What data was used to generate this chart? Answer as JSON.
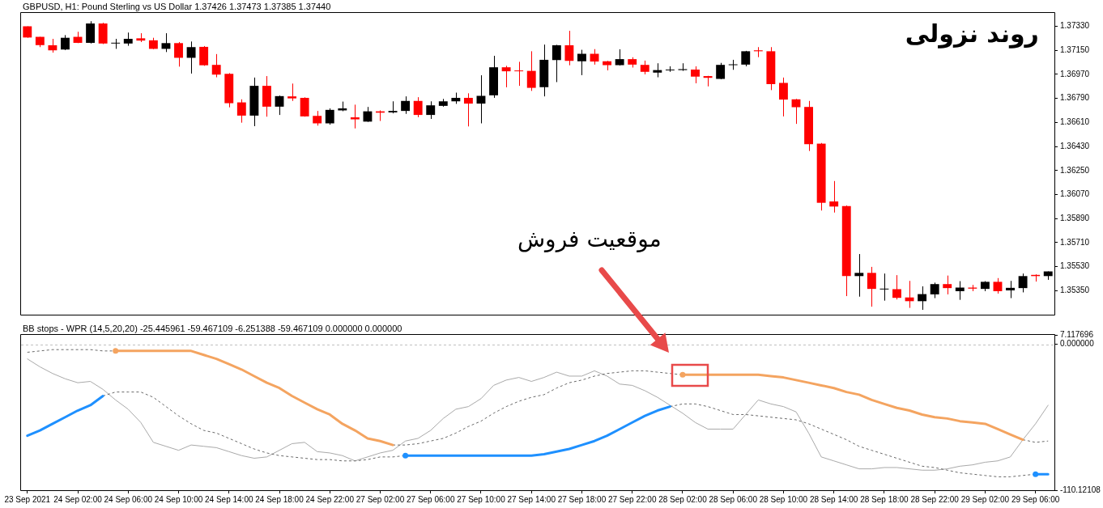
{
  "chart_data": [
    {
      "type": "candlestick",
      "title": "GBPUSD, H1: Pound Sterling vs US Dollar 1.37426 1.37473 1.37385 1.37440",
      "categories": [
        null,
        null,
        null,
        null,
        null,
        null,
        null,
        null,
        null,
        null,
        null,
        null,
        null,
        null,
        null,
        null,
        null,
        null,
        null,
        null,
        null,
        null,
        null,
        null,
        null,
        null,
        null,
        null,
        null,
        null,
        null,
        null,
        null,
        null,
        null,
        null,
        null,
        null,
        null,
        null,
        null,
        null,
        null,
        null,
        null,
        null,
        null,
        null,
        null,
        null,
        null,
        null,
        null,
        null,
        null,
        null,
        null,
        null,
        null,
        null,
        null,
        null,
        null,
        null,
        null,
        null,
        null,
        null,
        null,
        null,
        null,
        null,
        null,
        null,
        null,
        null,
        null,
        null,
        null,
        null,
        null,
        null
      ],
      "ohlc": [
        [
          1.3733,
          1.3733,
          1.37244,
          1.37246
        ],
        [
          1.37251,
          1.37251,
          1.37174,
          1.37189
        ],
        [
          1.37188,
          1.37236,
          1.37133,
          1.3715
        ],
        [
          1.37156,
          1.37264,
          1.37152,
          1.37244
        ],
        [
          1.37251,
          1.37289,
          1.37204,
          1.37206
        ],
        [
          1.37206,
          1.37368,
          1.37201,
          1.37351
        ],
        [
          1.37351,
          1.37356,
          1.37197,
          1.37201
        ],
        [
          1.37201,
          1.37236,
          1.37161,
          1.37203
        ],
        [
          1.37201,
          1.37283,
          1.37184,
          1.37236
        ],
        [
          1.3724,
          1.37278,
          1.37212,
          1.37223
        ],
        [
          1.37225,
          1.37244,
          1.37159,
          1.37161
        ],
        [
          1.37161,
          1.37278,
          1.37137,
          1.37204
        ],
        [
          1.37204,
          1.37212,
          1.37028,
          1.37094
        ],
        [
          1.37094,
          1.37216,
          1.36976,
          1.37174
        ],
        [
          1.37176,
          1.37182,
          1.37034,
          1.37038
        ],
        [
          1.37041,
          1.37122,
          1.36948,
          1.36968
        ],
        [
          1.36974,
          1.36979,
          1.36723,
          1.36754
        ],
        [
          1.3676,
          1.36783,
          1.36608,
          1.36661
        ],
        [
          1.36661,
          1.36946,
          1.36582,
          1.36884
        ],
        [
          1.36884,
          1.36957,
          1.36653,
          1.36728
        ],
        [
          1.36728,
          1.36811,
          1.36666,
          1.36807
        ],
        [
          1.36805,
          1.36901,
          1.36771,
          1.3679
        ],
        [
          1.36794,
          1.36798,
          1.36653,
          1.36655
        ],
        [
          1.36659,
          1.36696,
          1.36586,
          1.36603
        ],
        [
          1.36603,
          1.36715,
          1.36593,
          1.36704
        ],
        [
          1.367,
          1.36766,
          1.36694,
          1.36715
        ],
        [
          1.36648,
          1.36743,
          1.36565,
          1.36633
        ],
        [
          1.36616,
          1.36726,
          1.36614,
          1.36693
        ],
        [
          1.36693,
          1.367,
          1.36621,
          1.36683
        ],
        [
          1.36685,
          1.36768,
          1.36678,
          1.36696
        ],
        [
          1.36696,
          1.36805,
          1.36674,
          1.36771
        ],
        [
          1.36771,
          1.36799,
          1.36649,
          1.36666
        ],
        [
          1.36666,
          1.36768,
          1.36636,
          1.36738
        ],
        [
          1.36734,
          1.36786,
          1.36728,
          1.36768
        ],
        [
          1.36768,
          1.36833,
          1.36749,
          1.36794
        ],
        [
          1.36794,
          1.36828,
          1.3658,
          1.36751
        ],
        [
          1.36751,
          1.36963,
          1.36603,
          1.36809
        ],
        [
          1.36813,
          1.37109,
          1.36794,
          1.37023
        ],
        [
          1.37023,
          1.37034,
          1.36873,
          1.36993
        ],
        [
          1.36996,
          1.37064,
          1.36884,
          1.36993
        ],
        [
          1.36996,
          1.37143,
          1.36846,
          1.36869
        ],
        [
          1.36874,
          1.37193,
          1.36805,
          1.37079
        ],
        [
          1.37077,
          1.37191,
          1.36912,
          1.37188
        ],
        [
          1.37188,
          1.37296,
          1.37038,
          1.37071
        ],
        [
          1.37068,
          1.37154,
          1.36964,
          1.37124
        ],
        [
          1.37124,
          1.37159,
          1.37043,
          1.37066
        ],
        [
          1.37068,
          1.37071,
          1.37,
          1.37039
        ],
        [
          1.37039,
          1.37158,
          1.37036,
          1.37084
        ],
        [
          1.37084,
          1.37098,
          1.37021,
          1.37043
        ],
        [
          1.37041,
          1.37073,
          1.3697,
          1.36989
        ],
        [
          1.36983,
          1.37053,
          1.36948,
          1.37002
        ],
        [
          1.37,
          1.3703,
          1.36989,
          1.37002
        ],
        [
          1.37002,
          1.37053,
          1.36996,
          1.37009
        ],
        [
          1.37006,
          1.3703,
          1.36903,
          1.36953
        ],
        [
          1.36957,
          1.36959,
          1.3688,
          1.36944
        ],
        [
          1.36936,
          1.37056,
          1.36933,
          1.37041
        ],
        [
          1.37039,
          1.37079,
          1.37004,
          1.37043
        ],
        [
          1.37043,
          1.37146,
          1.3703,
          1.37143
        ],
        [
          1.3715,
          1.37174,
          1.37099,
          1.37143
        ],
        [
          1.37143,
          1.37174,
          1.36852,
          1.36897
        ],
        [
          1.36906,
          1.36946,
          1.36655,
          1.36781
        ],
        [
          1.36783,
          1.36786,
          1.36599,
          1.36724
        ],
        [
          1.36726,
          1.36771,
          1.36396,
          1.36447
        ],
        [
          1.36451,
          1.36456,
          1.3595,
          1.36008
        ],
        [
          1.36018,
          1.36171,
          1.35935,
          1.3598
        ],
        [
          1.35984,
          1.35988,
          1.35309,
          1.35459
        ],
        [
          1.35459,
          1.35624,
          1.35305,
          1.35483
        ],
        [
          1.35483,
          1.35528,
          1.3523,
          1.35363
        ],
        [
          1.35359,
          1.35478,
          1.35275,
          1.35365
        ],
        [
          1.35361,
          1.35466,
          1.35284,
          1.35296
        ],
        [
          1.35299,
          1.35423,
          1.35221,
          1.35271
        ],
        [
          1.35271,
          1.35382,
          1.35206,
          1.35324
        ],
        [
          1.35322,
          1.3541,
          1.35294,
          1.35399
        ],
        [
          1.35399,
          1.35463,
          1.35322,
          1.35369
        ],
        [
          1.35346,
          1.35421,
          1.35281,
          1.35373
        ],
        [
          1.35373,
          1.35393,
          1.35346,
          1.35365
        ],
        [
          1.35363,
          1.35421,
          1.35346,
          1.35416
        ],
        [
          1.35416,
          1.35444,
          1.35328,
          1.35346
        ],
        [
          1.35352,
          1.35423,
          1.35294,
          1.35371
        ],
        [
          1.35369,
          1.35478,
          1.35337,
          1.35459
        ],
        [
          1.35468,
          1.35472,
          1.35418,
          1.35459
        ],
        [
          1.35459,
          1.35494,
          1.35431,
          1.35494
        ]
      ],
      "colors": [
        "#ff0000",
        "#ff0000",
        "#ff0000",
        "#000000",
        "#ff0000",
        "#000000",
        "#ff0000",
        "#000000",
        "#000000",
        "#ff0000",
        "#ff0000",
        "#000000",
        "#ff0000",
        "#000000",
        "#ff0000",
        "#ff0000",
        "#ff0000",
        "#ff0000",
        "#000000",
        "#ff0000",
        "#000000",
        "#ff0000",
        "#ff0000",
        "#ff0000",
        "#000000",
        "#000000",
        "#ff0000",
        "#000000",
        "#ff0000",
        "#000000",
        "#000000",
        "#ff0000",
        "#000000",
        "#000000",
        "#000000",
        "#ff0000",
        "#000000",
        "#000000",
        "#ff0000",
        "#ff0000",
        "#ff0000",
        "#000000",
        "#000000",
        "#ff0000",
        "#000000",
        "#ff0000",
        "#ff0000",
        "#000000",
        "#ff0000",
        "#ff0000",
        "#000000",
        "#000000",
        "#000000",
        "#ff0000",
        "#ff0000",
        "#000000",
        "#000000",
        "#000000",
        "#ff0000",
        "#ff0000",
        "#ff0000",
        "#ff0000",
        "#ff0000",
        "#ff0000",
        "#ff0000",
        "#ff0000",
        "#000000",
        "#ff0000",
        "#000000",
        "#ff0000",
        "#ff0000",
        "#000000",
        "#000000",
        "#ff0000",
        "#000000",
        "#ff0000",
        "#000000",
        "#ff0000",
        "#000000",
        "#000000",
        "#ff0000",
        "#000000"
      ],
      "ylim": [
        1.3517,
        1.3743
      ],
      "yticks": [
        {
          "value": 1.3733,
          "label": "1.37330"
        },
        {
          "value": 1.3715,
          "label": "1.37150"
        },
        {
          "value": 1.3697,
          "label": "1.36970"
        },
        {
          "value": 1.3679,
          "label": "1.36790"
        },
        {
          "value": 1.3661,
          "label": "1.36610"
        },
        {
          "value": 1.3643,
          "label": "1.36430"
        },
        {
          "value": 1.3625,
          "label": "1.36250"
        },
        {
          "value": 1.3607,
          "label": "1.36070"
        },
        {
          "value": 1.3589,
          "label": "1.35890"
        },
        {
          "value": 1.3571,
          "label": "1.35710"
        },
        {
          "value": 1.3553,
          "label": "1.35530"
        },
        {
          "value": 1.3535,
          "label": "1.35350"
        }
      ],
      "tick_labels": "y",
      "grid": false,
      "legend": false,
      "annotations": [
        "روند نزولی",
        "موقعیت فروش"
      ]
    },
    {
      "type": "line",
      "title": "BB stops - WPR (14,5,20,20) -25.445961 -59.467109 -6.251388 -59.467109 0.000000 0.000000",
      "categories": [
        "23 Sep 2021",
        null,
        null,
        null,
        "24 Sep 02:00",
        null,
        null,
        null,
        "24 Sep 06:00",
        null,
        null,
        null,
        "24 Sep 10:00",
        null,
        null,
        null,
        "24 Sep 14:00",
        null,
        null,
        null,
        "24 Sep 18:00",
        null,
        null,
        null,
        "24 Sep 22:00",
        null,
        null,
        null,
        "27 Sep 02:00",
        null,
        null,
        null,
        "27 Sep 06:00",
        null,
        null,
        null,
        "27 Sep 10:00",
        null,
        null,
        null,
        "27 Sep 14:00",
        null,
        null,
        null,
        "27 Sep 18:00",
        null,
        null,
        null,
        "27 Sep 22:00",
        null,
        null,
        null,
        "28 Sep 02:00",
        null,
        null,
        null,
        "28 Sep 06:00",
        null,
        null,
        null,
        "28 Sep 10:00",
        null,
        null,
        null,
        "28 Sep 14:00",
        null,
        null,
        null,
        "28 Sep 18:00",
        null,
        null,
        null,
        "28 Sep 22:00",
        null,
        null,
        null,
        "29 Sep 02:00",
        null,
        null,
        null,
        "29 Sep 06:00",
        null
      ],
      "series": [
        {
          "color": "#a9a9a9",
          "values": [
            -11,
            -17,
            -22,
            -26,
            -29,
            -28,
            -34,
            -42,
            -49,
            -59,
            -74,
            -77,
            -80,
            -76,
            -77,
            -78,
            -81,
            -84,
            -86,
            -85,
            -80,
            -75,
            -74,
            -81,
            -82,
            -84,
            -88,
            -85,
            -82,
            -80,
            -73,
            -71,
            -65,
            -56,
            -49,
            -47,
            -41,
            -31,
            -27,
            -25,
            -28,
            -25,
            -21,
            -24,
            -24,
            -20,
            -24,
            -30,
            -31,
            -35,
            -40,
            -46,
            -52,
            -59,
            -64,
            -64,
            -64,
            -53,
            -42,
            -45,
            -47,
            -51,
            -67,
            -85,
            -88,
            -91,
            -94,
            -94,
            -93,
            -93,
            -94,
            -95,
            -95,
            -94,
            -92,
            -91,
            -89,
            -88,
            -85,
            -72,
            -60,
            -46
          ]
        },
        {
          "color": "#696969",
          "line_style": "dashed",
          "values": [
            -6,
            -5,
            -4,
            -4,
            -4,
            -4,
            -5,
            -5,
            null,
            null,
            null,
            null,
            null,
            null,
            null,
            null,
            null,
            null,
            null,
            null,
            null,
            null,
            null,
            null,
            null,
            null,
            null,
            null,
            null,
            -76,
            -76,
            -75,
            -73,
            -71,
            -67,
            -62,
            -58,
            -52,
            -47,
            -43,
            -40,
            -38,
            -33,
            -29,
            -27,
            -24,
            -22,
            -21,
            -20,
            -20,
            -21,
            -22,
            -23,
            null,
            null,
            null,
            null,
            null,
            null,
            null,
            null,
            null,
            null,
            null,
            null,
            null,
            null,
            null,
            null,
            null,
            null,
            null,
            null,
            null,
            null,
            null,
            null,
            null,
            null,
            -72,
            -74,
            -73
          ]
        },
        {
          "color": "#696969",
          "line_style": "dashed",
          "values": [
            null,
            null,
            null,
            null,
            null,
            null,
            -39,
            -36,
            -36,
            -36,
            -40,
            -47,
            -54,
            -60,
            -65,
            -67,
            -71,
            -75,
            -79,
            -82,
            -84,
            -85,
            -86,
            -87,
            -87,
            -88,
            -88,
            -87,
            -85,
            -85,
            -84,
            null,
            null,
            null,
            null,
            null,
            null,
            null,
            null,
            null,
            null,
            null,
            null,
            null,
            null,
            null,
            null,
            null,
            null,
            null,
            null,
            -47,
            -45,
            -45,
            -47,
            -50,
            -53,
            -53,
            -54,
            -55,
            -56,
            -57,
            -60,
            -64,
            -68,
            -72,
            -77,
            -80,
            -83,
            -86,
            -89,
            -92,
            -93,
            -95,
            -97,
            -98,
            -99,
            -100,
            -100,
            -99,
            -98,
            null
          ]
        },
        {
          "color": "#f4a460",
          "values": [
            null,
            null,
            null,
            null,
            null,
            null,
            null,
            -5,
            -5,
            -5,
            -5,
            -5,
            -5,
            -5,
            -8,
            -11,
            -15,
            -19,
            -24,
            -29,
            -33,
            -39,
            -44,
            -49,
            -53,
            -60,
            -65,
            -71,
            -73,
            -76,
            null,
            null,
            null,
            null,
            null,
            null,
            null,
            null,
            null,
            null,
            null,
            null,
            null,
            null,
            null,
            null,
            null,
            null,
            null,
            null,
            null,
            null,
            -23,
            -23,
            -23,
            -23,
            -23,
            -23,
            -23,
            -24,
            -25,
            -27,
            -29,
            -31,
            -33,
            -36,
            -38,
            -42,
            -45,
            -48,
            -50,
            -53,
            -55,
            -56,
            -58,
            -59,
            -60,
            -64,
            -68,
            -72,
            null,
            null
          ]
        },
        {
          "color": "#1e90ff",
          "values": [
            -69,
            -65,
            -60,
            -55,
            -50,
            -46,
            -39,
            null,
            null,
            null,
            null,
            null,
            null,
            null,
            null,
            null,
            null,
            null,
            null,
            null,
            null,
            null,
            null,
            null,
            null,
            null,
            null,
            null,
            null,
            null,
            -84,
            -84,
            -84,
            -84,
            -84,
            -84,
            -84,
            -84,
            -84,
            -84,
            -84,
            -83,
            -81,
            -79,
            -76,
            -73,
            -69,
            -64,
            -59,
            -54,
            -50,
            -47,
            null,
            null,
            null,
            null,
            null,
            null,
            null,
            null,
            null,
            null,
            null,
            null,
            null,
            null,
            null,
            null,
            null,
            null,
            null,
            null,
            null,
            null,
            null,
            null,
            null,
            null,
            null,
            null,
            -98,
            -98
          ]
        },
        {
          "type": "scatter",
          "marker": "circle",
          "color": "#f4a460",
          "values": [
            null,
            null,
            null,
            null,
            null,
            null,
            null,
            -5,
            null,
            null,
            null,
            null,
            null,
            null,
            null,
            null,
            null,
            null,
            null,
            null,
            null,
            null,
            null,
            null,
            null,
            null,
            null,
            null,
            null,
            null,
            null,
            null,
            null,
            null,
            null,
            null,
            null,
            null,
            null,
            null,
            null,
            null,
            null,
            null,
            null,
            null,
            null,
            null,
            null,
            null,
            null,
            null,
            -23,
            null,
            null,
            null,
            null,
            null,
            null,
            null,
            null,
            null,
            null,
            null,
            null,
            null,
            null,
            null,
            null,
            null,
            null,
            null,
            null,
            null,
            null,
            null,
            null,
            null,
            null,
            null,
            null,
            null
          ]
        },
        {
          "type": "scatter",
          "marker": "circle",
          "color": "#1e90ff",
          "values": [
            null,
            null,
            null,
            null,
            null,
            null,
            null,
            null,
            null,
            null,
            null,
            null,
            null,
            null,
            null,
            null,
            null,
            null,
            null,
            null,
            null,
            null,
            null,
            null,
            null,
            null,
            null,
            null,
            null,
            null,
            -84,
            null,
            null,
            null,
            null,
            null,
            null,
            null,
            null,
            null,
            null,
            null,
            null,
            null,
            null,
            null,
            null,
            null,
            null,
            null,
            null,
            null,
            null,
            null,
            null,
            null,
            null,
            null,
            null,
            null,
            null,
            null,
            null,
            null,
            null,
            null,
            null,
            null,
            null,
            null,
            null,
            null,
            null,
            null,
            null,
            null,
            null,
            null,
            null,
            null,
            -98,
            null
          ]
        }
      ],
      "ylim": [
        -110.12108,
        7.117696
      ],
      "yticks": [
        7.117696,
        {
          "value": 0,
          "label": "0.000000"
        },
        {
          "value": -110.12108,
          "label": "-110.12108"
        }
      ],
      "ref_lines": [
        {
          "axis": "y",
          "value": 0,
          "color": "#c0c0c0",
          "line_style": "dashed"
        }
      ],
      "marker": "none",
      "grid": false,
      "legend": false
    }
  ]
}
